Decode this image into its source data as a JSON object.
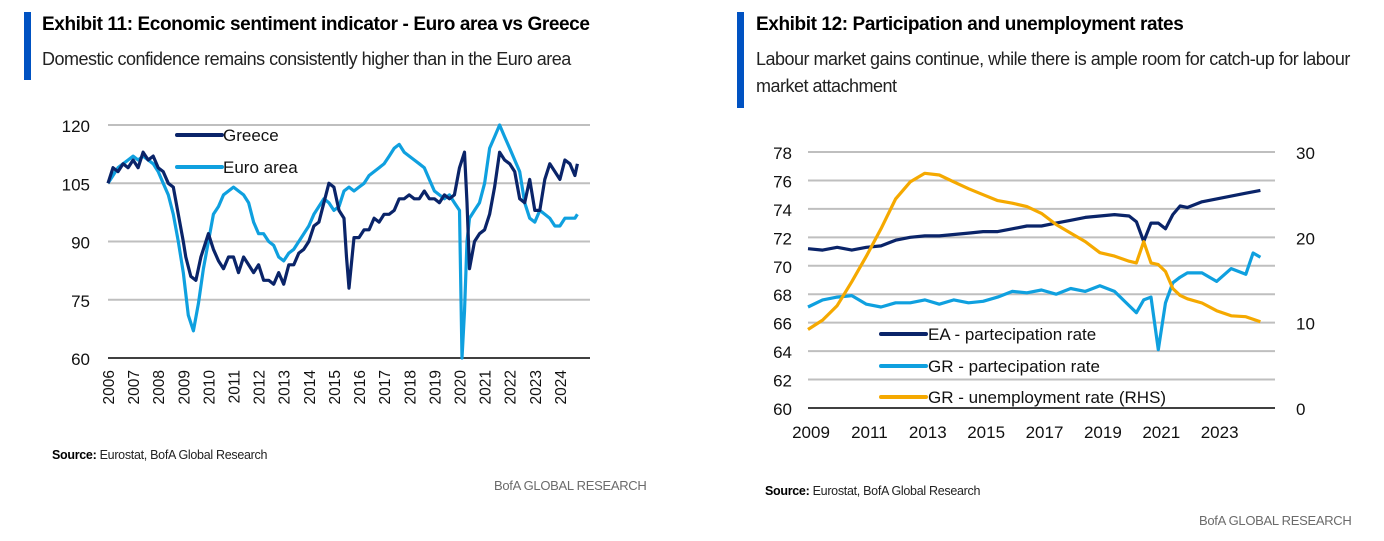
{
  "colors": {
    "accent": "#0052C2",
    "dark_navy": "#0A2469",
    "light_blue": "#0FA0DF",
    "orange": "#F5A900",
    "grid": "#BFBFBF",
    "axis": "#404040"
  },
  "exhibit11": {
    "title": "Exhibit 11: Economic sentiment indicator - Euro area vs Greece",
    "subtitle": "Domestic confidence remains consistently higher than in the Euro area",
    "source_label": "Source:",
    "source_text": " Eurostat, BofA Global Research",
    "brand": "BofA GLOBAL RESEARCH"
  },
  "exhibit12": {
    "title": "Exhibit 12: Participation and unemployment rates",
    "subtitle": "Labour market gains continue, while there is ample room for catch-up for labour market attachment",
    "source_label": "Source:",
    "source_text": " Eurostat, BofA Global Research",
    "brand": "BofA GLOBAL RESEARCH"
  },
  "chart_data": [
    {
      "type": "line",
      "title": "Economic sentiment indicator - Euro area vs Greece",
      "xlabel": "",
      "ylabel": "",
      "ylim": [
        60,
        120
      ],
      "yticks": [
        60,
        75,
        90,
        105,
        120
      ],
      "xticks": [
        "2006",
        "2007",
        "2008",
        "2009",
        "2010",
        "2011",
        "2012",
        "2013",
        "2014",
        "2015",
        "2016",
        "2017",
        "2018",
        "2019",
        "2020",
        "2021",
        "2022",
        "2023",
        "2024"
      ],
      "xlim": [
        2006,
        2024.9
      ],
      "grid": true,
      "legend": "top-left",
      "series": [
        {
          "name": "Greece",
          "color": "#0A2469",
          "x": [
            2006.0,
            2006.2,
            2006.4,
            2006.6,
            2006.8,
            2007.0,
            2007.2,
            2007.4,
            2007.6,
            2007.8,
            2008.0,
            2008.2,
            2008.4,
            2008.6,
            2008.8,
            2009.0,
            2009.1,
            2009.3,
            2009.5,
            2009.7,
            2009.9,
            2010.0,
            2010.2,
            2010.4,
            2010.6,
            2010.8,
            2011.0,
            2011.2,
            2011.4,
            2011.6,
            2011.8,
            2012.0,
            2012.2,
            2012.4,
            2012.6,
            2012.8,
            2013.0,
            2013.2,
            2013.4,
            2013.6,
            2013.8,
            2014.0,
            2014.2,
            2014.4,
            2014.6,
            2014.8,
            2015.0,
            2015.2,
            2015.4,
            2015.5,
            2015.6,
            2015.8,
            2016.0,
            2016.2,
            2016.4,
            2016.6,
            2016.8,
            2017.0,
            2017.2,
            2017.4,
            2017.6,
            2017.8,
            2018.0,
            2018.2,
            2018.4,
            2018.6,
            2018.8,
            2019.0,
            2019.2,
            2019.4,
            2019.6,
            2019.8,
            2020.0,
            2020.1,
            2020.2,
            2020.3,
            2020.4,
            2020.6,
            2020.8,
            2021.0,
            2021.2,
            2021.4,
            2021.6,
            2021.8,
            2022.0,
            2022.2,
            2022.4,
            2022.6,
            2022.8,
            2023.0,
            2023.2,
            2023.4,
            2023.6,
            2023.8,
            2024.0,
            2024.2,
            2024.4,
            2024.6,
            2024.7
          ],
          "values": [
            105,
            109,
            108,
            110,
            109,
            111,
            109,
            113,
            111,
            112,
            109,
            108,
            105,
            104,
            97,
            90,
            86,
            81,
            80,
            86,
            90,
            92,
            88,
            85,
            83,
            86,
            86,
            82,
            86,
            84,
            82,
            84,
            80,
            80,
            79,
            82,
            79,
            84,
            84,
            87,
            88,
            90,
            94,
            95,
            100,
            105,
            104,
            98,
            96,
            86,
            78,
            91,
            91,
            93,
            93,
            96,
            95,
            97,
            97,
            98,
            101,
            101,
            102,
            101,
            101,
            103,
            101,
            101,
            100,
            102,
            101,
            102,
            109,
            111,
            113,
            100,
            83,
            90,
            92,
            93,
            97,
            104,
            113,
            111,
            110,
            108,
            101,
            100,
            106,
            98,
            98,
            106,
            110,
            108,
            106,
            111,
            110,
            107,
            110
          ]
        },
        {
          "name": "Euro area",
          "color": "#0FA0DF",
          "x": [
            2006.0,
            2006.2,
            2006.4,
            2006.6,
            2006.8,
            2007.0,
            2007.2,
            2007.4,
            2007.6,
            2007.8,
            2008.0,
            2008.2,
            2008.4,
            2008.6,
            2008.8,
            2009.0,
            2009.2,
            2009.4,
            2009.6,
            2009.8,
            2010.0,
            2010.2,
            2010.4,
            2010.6,
            2010.8,
            2011.0,
            2011.2,
            2011.4,
            2011.6,
            2011.8,
            2012.0,
            2012.2,
            2012.4,
            2012.6,
            2012.8,
            2013.0,
            2013.2,
            2013.4,
            2013.6,
            2013.8,
            2014.0,
            2014.2,
            2014.4,
            2014.6,
            2014.8,
            2015.0,
            2015.2,
            2015.4,
            2015.6,
            2015.8,
            2016.0,
            2016.2,
            2016.4,
            2016.6,
            2016.8,
            2017.0,
            2017.2,
            2017.4,
            2017.6,
            2017.8,
            2018.0,
            2018.2,
            2018.4,
            2018.6,
            2018.8,
            2019.0,
            2019.2,
            2019.4,
            2019.6,
            2019.8,
            2020.0,
            2020.1,
            2020.2,
            2020.3,
            2020.4,
            2020.6,
            2020.8,
            2021.0,
            2021.2,
            2021.4,
            2021.6,
            2021.8,
            2022.0,
            2022.2,
            2022.4,
            2022.6,
            2022.8,
            2023.0,
            2023.2,
            2023.4,
            2023.6,
            2023.8,
            2024.0,
            2024.2,
            2024.4,
            2024.6,
            2024.7
          ],
          "values": [
            105,
            107,
            109,
            110,
            111,
            112,
            111,
            112,
            111,
            110,
            108,
            105,
            102,
            97,
            90,
            82,
            71,
            67,
            74,
            83,
            90,
            97,
            99,
            102,
            103,
            104,
            103,
            102,
            100,
            95,
            92,
            92,
            90,
            89,
            86,
            85,
            87,
            88,
            90,
            92,
            94,
            97,
            99,
            101,
            100,
            98,
            99,
            103,
            104,
            103,
            104,
            105,
            107,
            108,
            109,
            110,
            112,
            114,
            115,
            113,
            112,
            111,
            110,
            109,
            106,
            103,
            102,
            101,
            102,
            100,
            98,
            60,
            72,
            90,
            96,
            98,
            100,
            105,
            114,
            117,
            120,
            117,
            114,
            111,
            108,
            100,
            96,
            95,
            98,
            97,
            96,
            94,
            94,
            96,
            96,
            96,
            97
          ]
        }
      ]
    },
    {
      "type": "line",
      "title": "Participation and unemployment rates",
      "xlabel": "",
      "ylabel": "",
      "ylim": [
        60,
        78
      ],
      "yticks": [
        60,
        62,
        64,
        66,
        68,
        70,
        72,
        74,
        76,
        78
      ],
      "y2lim": [
        0,
        30
      ],
      "y2ticks": [
        0,
        10,
        20,
        30
      ],
      "xticks": [
        "2009",
        "2011",
        "2013",
        "2015",
        "2017",
        "2019",
        "2021",
        "2023"
      ],
      "xlim": [
        2009,
        2025
      ],
      "grid": true,
      "legend": "bottom-left",
      "series": [
        {
          "name": "EA - partecipation rate",
          "axis": "left",
          "color": "#0A2469",
          "x": [
            2009.0,
            2009.5,
            2010.0,
            2010.5,
            2011.0,
            2011.5,
            2012.0,
            2012.5,
            2013.0,
            2013.5,
            2014.0,
            2014.5,
            2015.0,
            2015.5,
            2016.0,
            2016.5,
            2017.0,
            2017.5,
            2018.0,
            2018.5,
            2019.0,
            2019.5,
            2020.0,
            2020.25,
            2020.5,
            2020.75,
            2021.0,
            2021.25,
            2021.5,
            2021.75,
            2022.0,
            2022.5,
            2023.0,
            2023.5,
            2024.0,
            2024.5
          ],
          "values": [
            71.2,
            71.1,
            71.3,
            71.1,
            71.3,
            71.4,
            71.8,
            72.0,
            72.1,
            72.1,
            72.2,
            72.3,
            72.4,
            72.4,
            72.6,
            72.8,
            72.8,
            73.0,
            73.2,
            73.4,
            73.5,
            73.6,
            73.5,
            73.1,
            71.7,
            73.0,
            73.0,
            72.6,
            73.6,
            74.2,
            74.1,
            74.5,
            74.7,
            74.9,
            75.1,
            75.3
          ]
        },
        {
          "name": "GR - partecipation rate",
          "axis": "left",
          "color": "#0FA0DF",
          "x": [
            2009.0,
            2009.5,
            2010.0,
            2010.5,
            2011.0,
            2011.5,
            2012.0,
            2012.5,
            2013.0,
            2013.5,
            2014.0,
            2014.5,
            2015.0,
            2015.5,
            2016.0,
            2016.5,
            2017.0,
            2017.5,
            2018.0,
            2018.5,
            2019.0,
            2019.5,
            2020.0,
            2020.25,
            2020.5,
            2020.75,
            2021.0,
            2021.25,
            2021.5,
            2021.75,
            2022.0,
            2022.5,
            2023.0,
            2023.5,
            2024.0,
            2024.25,
            2024.5
          ],
          "values": [
            67.1,
            67.6,
            67.8,
            67.9,
            67.3,
            67.1,
            67.4,
            67.4,
            67.6,
            67.3,
            67.6,
            67.4,
            67.5,
            67.8,
            68.2,
            68.1,
            68.3,
            68.0,
            68.4,
            68.2,
            68.6,
            68.2,
            67.2,
            66.7,
            67.6,
            67.8,
            64.1,
            67.4,
            68.8,
            69.2,
            69.5,
            69.5,
            68.9,
            69.8,
            69.4,
            70.9,
            70.6
          ]
        },
        {
          "name": "GR - unemployment rate (RHS)",
          "axis": "right",
          "color": "#F5A900",
          "x": [
            2009.0,
            2009.5,
            2010.0,
            2010.5,
            2011.0,
            2011.5,
            2012.0,
            2012.5,
            2013.0,
            2013.5,
            2014.0,
            2014.5,
            2015.0,
            2015.5,
            2016.0,
            2016.5,
            2017.0,
            2017.5,
            2018.0,
            2018.5,
            2019.0,
            2019.5,
            2020.0,
            2020.25,
            2020.5,
            2020.75,
            2021.0,
            2021.25,
            2021.5,
            2021.75,
            2022.0,
            2022.5,
            2023.0,
            2023.5,
            2024.0,
            2024.5
          ],
          "values": [
            9.2,
            10.3,
            12.0,
            14.8,
            17.8,
            21.0,
            24.5,
            26.5,
            27.5,
            27.3,
            26.5,
            25.7,
            25.0,
            24.3,
            24.0,
            23.6,
            22.8,
            21.5,
            20.5,
            19.5,
            18.2,
            17.8,
            17.2,
            17.0,
            19.5,
            17.0,
            16.8,
            16.0,
            14.0,
            13.2,
            12.8,
            12.3,
            11.4,
            10.8,
            10.7,
            10.1
          ]
        }
      ]
    }
  ]
}
